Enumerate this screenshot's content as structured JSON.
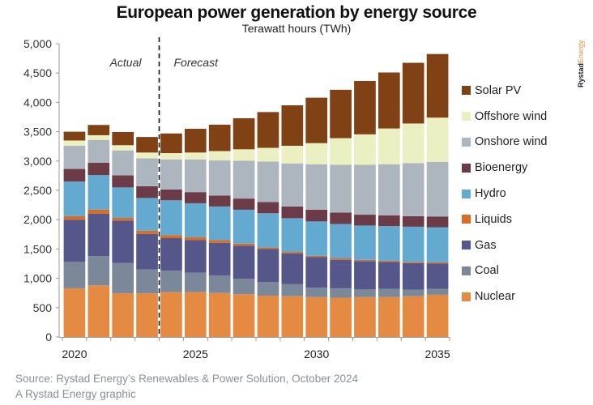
{
  "header": {
    "title": "European power generation by energy source",
    "subtitle": "Terawatt hours (TWh)",
    "brand_part1": "Rystad",
    "brand_part2": "Energy"
  },
  "footer": {
    "source": "Source: Rystad Energy’s Renewables & Power Solution, October 2024",
    "credit": "A Rystad Energy graphic"
  },
  "chart_data": {
    "type": "bar",
    "stacked": true,
    "title": "European power generation by energy source",
    "subtitle": "Terawatt hours (TWh)",
    "xlabel": "",
    "ylabel": "Terawatt hours (TWh)",
    "ylim": [
      0,
      5000
    ],
    "yticks": [
      0,
      500,
      1000,
      1500,
      2000,
      2500,
      3000,
      3500,
      4000,
      4500,
      5000
    ],
    "ytick_labels": [
      "0",
      "500",
      "1,000",
      "1,500",
      "2,000",
      "2,500",
      "3,000",
      "3,500",
      "4,000",
      "4,500",
      "5,000"
    ],
    "categories": [
      "2020",
      "2021",
      "2022",
      "2023",
      "2024",
      "2025",
      "2026",
      "2027",
      "2028",
      "2029",
      "2030",
      "2031",
      "2032",
      "2033",
      "2034",
      "2035"
    ],
    "xtick_labels": [
      {
        "category": "2020",
        "label": "2020"
      },
      {
        "category": "2025",
        "label": "2025"
      },
      {
        "category": "2030",
        "label": "2030"
      },
      {
        "category": "2035",
        "label": "2035"
      }
    ],
    "grid": false,
    "legend_position": "right",
    "annotations": [
      {
        "text": "Actual",
        "region": "2020-2023"
      },
      {
        "text": "Forecast",
        "region": "2024-2035"
      },
      {
        "type": "dashed-divider",
        "between": [
          "2023",
          "2024"
        ]
      }
    ],
    "series": [
      {
        "name": "Nuclear",
        "color": "#e58a43",
        "values": [
          830,
          880,
          745,
          745,
          765,
          765,
          750,
          730,
          705,
          695,
          680,
          670,
          680,
          680,
          695,
          720
        ]
      },
      {
        "name": "Coal",
        "color": "#7b8899",
        "values": [
          450,
          500,
          515,
          405,
          365,
          330,
          300,
          260,
          230,
          205,
          160,
          160,
          130,
          140,
          110,
          100
        ]
      },
      {
        "name": "Gas",
        "color": "#55568a",
        "values": [
          720,
          720,
          725,
          605,
          555,
          555,
          555,
          565,
          565,
          525,
          525,
          485,
          485,
          460,
          455,
          430
        ]
      },
      {
        "name": "Liquids",
        "color": "#d86d25",
        "values": [
          60,
          70,
          45,
          55,
          50,
          50,
          45,
          35,
          25,
          25,
          20,
          25,
          20,
          20,
          20,
          20
        ]
      },
      {
        "name": "Hydro",
        "color": "#64a9d0",
        "values": [
          590,
          590,
          520,
          560,
          595,
          580,
          575,
          580,
          585,
          575,
          585,
          585,
          585,
          590,
          600,
          600
        ]
      },
      {
        "name": "Bioenergy",
        "color": "#6b3b47",
        "values": [
          215,
          210,
          205,
          200,
          185,
          190,
          185,
          190,
          190,
          200,
          200,
          195,
          185,
          185,
          180,
          185
        ]
      },
      {
        "name": "Onshore wind",
        "color": "#adb5bf",
        "values": [
          395,
          390,
          425,
          475,
          510,
          555,
          600,
          645,
          690,
          735,
          775,
          815,
          850,
          870,
          905,
          930
        ]
      },
      {
        "name": "Offshore wind",
        "color": "#eaf0c2",
        "values": [
          90,
          80,
          90,
          100,
          110,
          120,
          160,
          195,
          235,
          300,
          360,
          455,
          520,
          610,
          675,
          755
        ]
      },
      {
        "name": "Solar PV",
        "color": "#804114",
        "values": [
          150,
          175,
          225,
          265,
          335,
          405,
          450,
          530,
          610,
          690,
          775,
          825,
          910,
          955,
          1035,
          1085
        ]
      }
    ],
    "legend_order": [
      "Solar PV",
      "Offshore wind",
      "Onshore wind",
      "Bioenergy",
      "Hydro",
      "Liquids",
      "Gas",
      "Coal",
      "Nuclear"
    ]
  }
}
